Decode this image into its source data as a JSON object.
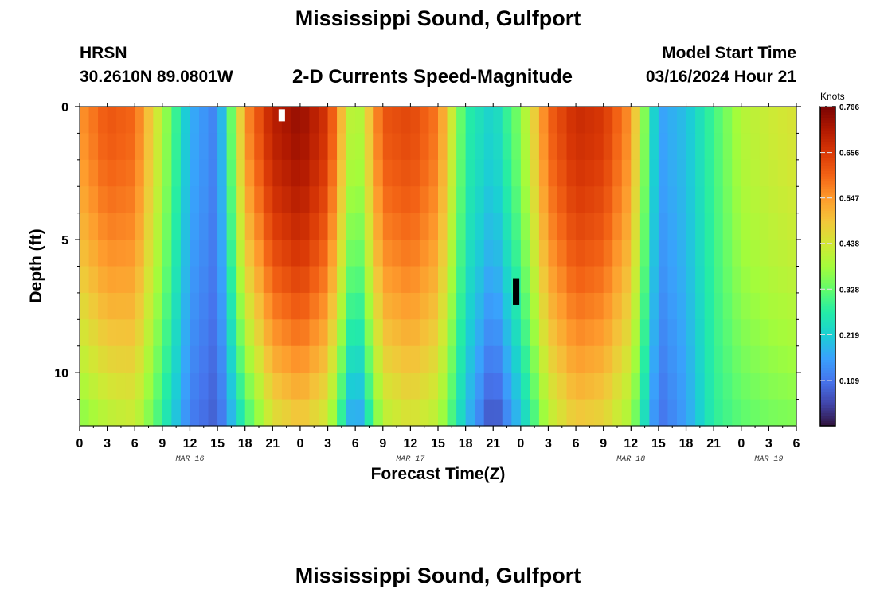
{
  "header": {
    "title": "Mississippi Sound, Gulfport",
    "station": "HRSN",
    "coords": "30.2610N  89.0801W",
    "product": "2-D Currents Speed-Magnitude",
    "model_start_label": "Model Start Time",
    "model_start_value": "03/16/2024 Hour 21"
  },
  "footer": {
    "title": "Mississippi Sound, Gulfport"
  },
  "chart_data": {
    "type": "heatmap",
    "title": "2-D Currents Speed-Magnitude",
    "xlabel": "Forecast Time(Z)",
    "ylabel": "Depth (ft)",
    "x_unit": "hours since Mar 16 00Z",
    "xlim": [
      0,
      78
    ],
    "ylim": [
      0,
      12
    ],
    "x_ticks": [
      0,
      3,
      6,
      9,
      12,
      15,
      18,
      21,
      24,
      27,
      30,
      33,
      36,
      39,
      42,
      45,
      48,
      51,
      54,
      57,
      60,
      63,
      66,
      69,
      72,
      75,
      78
    ],
    "x_tick_labels": [
      "0",
      "3",
      "6",
      "9",
      "12",
      "15",
      "18",
      "21",
      "0",
      "3",
      "6",
      "9",
      "12",
      "15",
      "18",
      "21",
      "0",
      "3",
      "6",
      "9",
      "12",
      "15",
      "18",
      "21",
      "0",
      "3",
      "6"
    ],
    "day_labels": [
      {
        "x": 12,
        "text": "MAR 16"
      },
      {
        "x": 36,
        "text": "MAR 17"
      },
      {
        "x": 60,
        "text": "MAR 18"
      },
      {
        "x": 75,
        "text": "MAR 19"
      }
    ],
    "y_ticks": [
      0,
      5,
      10
    ],
    "y_tick_labels": [
      "0",
      "5",
      "10"
    ],
    "depths_ft": [
      0,
      1,
      2,
      3,
      4,
      5,
      6,
      7,
      8,
      9,
      10,
      11,
      12
    ],
    "speed_knots_by_hour": {
      "hours": [
        0,
        3,
        6,
        9,
        12,
        15,
        18,
        21,
        24,
        27,
        30,
        33,
        36,
        39,
        42,
        45,
        48,
        51,
        54,
        57,
        60,
        63,
        66,
        69,
        72,
        75,
        78
      ],
      "surface": [
        0.55,
        0.62,
        0.6,
        0.4,
        0.18,
        0.12,
        0.55,
        0.7,
        0.74,
        0.66,
        0.36,
        0.62,
        0.64,
        0.58,
        0.28,
        0.22,
        0.36,
        0.6,
        0.68,
        0.66,
        0.55,
        0.16,
        0.2,
        0.3,
        0.4,
        0.43,
        0.45
      ],
      "bottom": [
        0.35,
        0.4,
        0.42,
        0.28,
        0.12,
        0.08,
        0.28,
        0.44,
        0.48,
        0.42,
        0.12,
        0.4,
        0.44,
        0.4,
        0.2,
        0.05,
        0.2,
        0.4,
        0.48,
        0.46,
        0.38,
        0.1,
        0.16,
        0.28,
        0.32,
        0.34,
        0.35
      ]
    },
    "missing_cells": [
      {
        "hour": 22.0,
        "depth_ft": 0,
        "color": "#ffffff"
      },
      {
        "hour": 47.5,
        "depth_ft": 7,
        "color": "#000000"
      }
    ],
    "colorbar": {
      "label": "Knots",
      "min": 0.0,
      "max": 0.766,
      "ticks": [
        0.109,
        0.219,
        0.328,
        0.438,
        0.547,
        0.656,
        0.766
      ],
      "tick_labels": [
        "0.109",
        "0.219",
        "0.328",
        "0.438",
        "0.547",
        "0.656",
        "0.766"
      ],
      "colors": [
        "#30123b",
        "#4145ab",
        "#4675ed",
        "#39a2fc",
        "#1bcfd4",
        "#24eca6",
        "#61fc6c",
        "#a4fc3b",
        "#d1e834",
        "#f3c63a",
        "#fe9b2d",
        "#f36315",
        "#d93806",
        "#b11901",
        "#7a0403"
      ]
    }
  }
}
